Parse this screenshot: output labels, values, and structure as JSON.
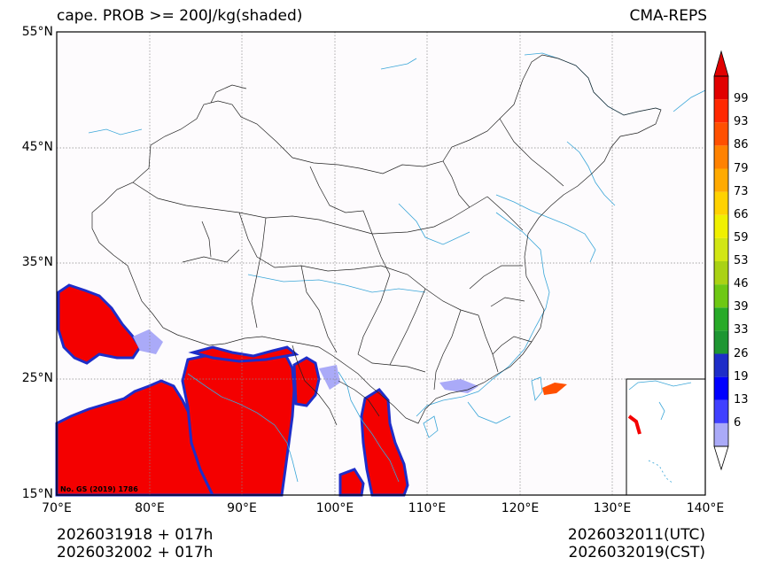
{
  "title": "cape. PROB >= 200J/kg(shaded)",
  "model": "CMA-REPS",
  "lat_labels": [
    "55°N",
    "45°N",
    "35°N",
    "25°N",
    "15°N"
  ],
  "lon_labels": [
    "70°E",
    "80°E",
    "90°E",
    "100°E",
    "110°E",
    "120°E",
    "130°E",
    "140°E"
  ],
  "colorbar": {
    "levels": [
      "6",
      "13",
      "19",
      "26",
      "33",
      "39",
      "46",
      "53",
      "59",
      "66",
      "73",
      "79",
      "86",
      "93",
      "99"
    ],
    "colors": [
      "#aaaaf8",
      "#4040ff",
      "#0000ff",
      "#1e2dc8",
      "#1e9632",
      "#28aa28",
      "#6ec814",
      "#aad214",
      "#d2e614",
      "#f0f000",
      "#ffd200",
      "#ffaa00",
      "#ff8200",
      "#ff5000",
      "#ff2800",
      "#e10000"
    ]
  },
  "credit": "No. GS (2019) 1786",
  "init_utc": "2026031918  +  017h",
  "init_cst": "2026032002  +  017h",
  "valid_utc": "2026032011(UTC)",
  "valid_cst": "2026032019(CST)",
  "shade_color": "#f40000"
}
